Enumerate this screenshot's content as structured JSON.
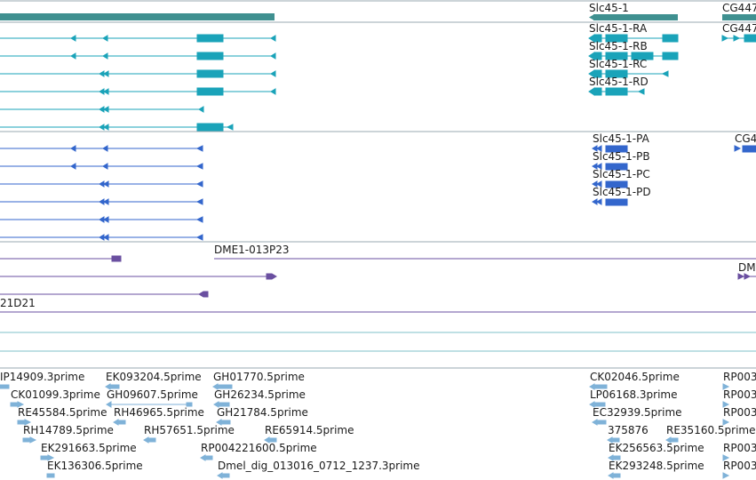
{
  "colors": {
    "gene": "#3f9090",
    "transcript": "#1aa3b9",
    "protein": "#3366cc",
    "clone": "#6a4fa0",
    "est": "#7fb2d8",
    "divider": "#9aa9b0",
    "track_line": "#7fc1c8"
  },
  "gene_track": {
    "labels": [
      "Slc45-1",
      "CG447"
    ]
  },
  "transcript_track": {
    "labels": [
      "Slc45-1-RA",
      "Slc45-1-RB",
      "Slc45-1-RC",
      "Slc45-1-RD",
      "CG447"
    ]
  },
  "protein_track": {
    "labels": [
      "Slc45-1-PA",
      "Slc45-1-PB",
      "Slc45-1-PC",
      "Slc45-1-PD",
      "CG4"
    ]
  },
  "clone_track": {
    "labels": [
      "DME1-013P23",
      "DM",
      "21D21"
    ]
  },
  "est_track": {
    "labels": [
      "IP14909.3prime",
      "EK093204.5prime",
      "GH01770.5prime",
      "CK02046.5prime",
      "RP003",
      "CK01099.3prime",
      "GH09607.5prime",
      "GH26234.5prime",
      "LP06168.3prime",
      "RP003",
      "RE45584.5prime",
      "RH46965.5prime",
      "GH21784.5prime",
      "EC32939.5prime",
      "RP003",
      "RH14789.5prime",
      "RH57651.5prime",
      "RE65914.5prime",
      "375876",
      "RE35160.5prime",
      "EK291663.5prime",
      "RP004221600.5prime",
      "EK256563.5prime",
      "RP003",
      "EK136306.5prime",
      "Dmel_dig_013016_0712_1237.3prime",
      "EK293248.5prime",
      "RP003"
    ]
  }
}
